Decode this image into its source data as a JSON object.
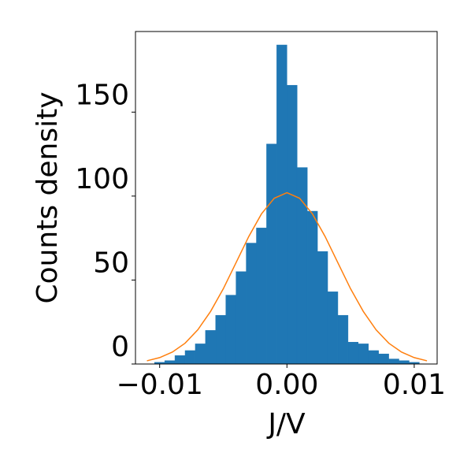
{
  "chart_data": {
    "type": "histogram",
    "xlabel": "J/V",
    "ylabel": "Counts density",
    "bins": [
      -0.0104,
      -0.0096,
      -0.0088,
      -0.008,
      -0.0072,
      -0.0064,
      -0.0056,
      -0.0048,
      -0.004,
      -0.0032,
      -0.0024,
      -0.0016,
      -0.0008,
      0,
      0.0008,
      0.0016,
      0.0024,
      0.0032,
      0.004,
      0.0048,
      0.0056,
      0.0064,
      0.0072,
      0.008,
      0.0088,
      0.0096,
      0.0104
    ],
    "values": [
      1,
      2,
      5,
      8,
      12,
      20,
      29,
      41,
      55,
      72,
      81,
      131,
      190,
      166,
      117,
      91,
      67,
      43,
      29,
      13,
      12,
      8,
      6,
      3,
      2,
      1
    ],
    "color": "#1f77b4",
    "fit": {
      "color": "#ff7f0e",
      "x": [
        -0.011,
        -0.01,
        -0.009,
        -0.008,
        -0.007,
        -0.006,
        -0.005,
        -0.004,
        -0.003,
        -0.002,
        -0.001,
        0,
        0.001,
        0.002,
        0.003,
        0.004,
        0.005,
        0.006,
        0.007,
        0.008,
        0.009,
        0.01,
        0.011
      ],
      "values": [
        1.9,
        3.8,
        7.1,
        12.4,
        20.4,
        31.3,
        44.8,
        60.3,
        75.9,
        89.4,
        98.7,
        102,
        98.7,
        89.4,
        75.9,
        60.3,
        44.8,
        31.3,
        20.4,
        12.4,
        7.1,
        3.8,
        1.9
      ]
    },
    "xlim": [
      -0.0119,
      0.0118
    ],
    "ylim": [
      0,
      198
    ],
    "xticks": [
      {
        "value": -0.01,
        "label": "−0.01"
      },
      {
        "value": 0,
        "label": "0.00"
      },
      {
        "value": 0.01,
        "label": "0.01"
      }
    ],
    "yticks": [
      0,
      50,
      100,
      150
    ]
  }
}
